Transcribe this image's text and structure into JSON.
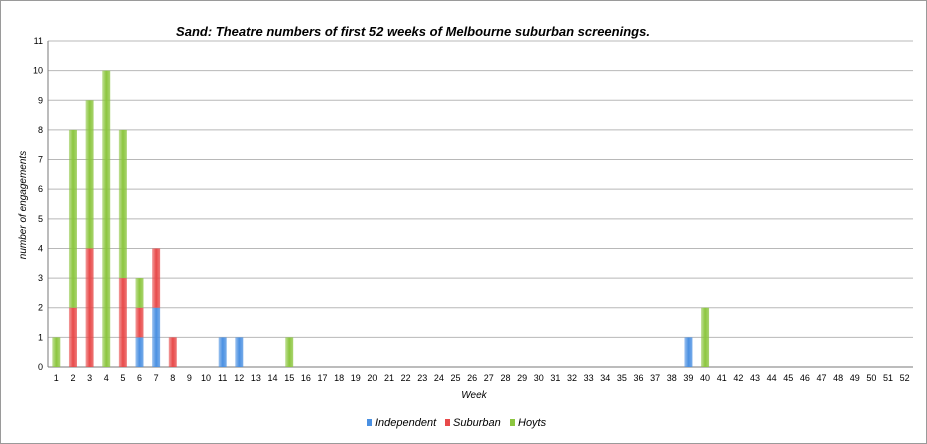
{
  "chart_data": {
    "type": "bar",
    "stacked": true,
    "title": "Sand: Theatre numbers of first 52 weeks of Melbourne suburban screenings.",
    "xlabel": "Week",
    "ylabel": "number of engagements",
    "ylim": [
      0,
      11
    ],
    "yticks": [
      "0",
      "1",
      "2",
      "3",
      "4",
      "5",
      "6",
      "7",
      "8",
      "9",
      "10",
      "11"
    ],
    "grid": true,
    "legend_position": "bottom",
    "categories": [
      "1",
      "2",
      "3",
      "4",
      "5",
      "6",
      "7",
      "8",
      "9",
      "10",
      "11",
      "12",
      "13",
      "14",
      "15",
      "16",
      "17",
      "18",
      "19",
      "20",
      "21",
      "22",
      "23",
      "24",
      "25",
      "26",
      "27",
      "28",
      "29",
      "30",
      "31",
      "32",
      "33",
      "34",
      "35",
      "36",
      "37",
      "38",
      "39",
      "40",
      "41",
      "42",
      "43",
      "44",
      "45",
      "46",
      "47",
      "48",
      "49",
      "50",
      "51",
      "52"
    ],
    "series": [
      {
        "name": "Independent",
        "color": "#4a90e2",
        "values": [
          0,
          0,
          0,
          0,
          0,
          1,
          2,
          0,
          0,
          0,
          1,
          1,
          0,
          0,
          0,
          0,
          0,
          0,
          0,
          0,
          0,
          0,
          0,
          0,
          0,
          0,
          0,
          0,
          0,
          0,
          0,
          0,
          0,
          0,
          0,
          0,
          0,
          0,
          1,
          0,
          0,
          0,
          0,
          0,
          0,
          0,
          0,
          0,
          0,
          0,
          0,
          0
        ]
      },
      {
        "name": "Suburban",
        "color": "#e84a4a",
        "values": [
          0,
          2,
          4,
          0,
          3,
          1,
          2,
          1,
          0,
          0,
          0,
          0,
          0,
          0,
          0,
          0,
          0,
          0,
          0,
          0,
          0,
          0,
          0,
          0,
          0,
          0,
          0,
          0,
          0,
          0,
          0,
          0,
          0,
          0,
          0,
          0,
          0,
          0,
          0,
          0,
          0,
          0,
          0,
          0,
          0,
          0,
          0,
          0,
          0,
          0,
          0,
          0
        ]
      },
      {
        "name": "Hoyts",
        "color": "#8cc63f",
        "values": [
          1,
          6,
          5,
          10,
          5,
          1,
          0,
          0,
          0,
          0,
          0,
          0,
          0,
          0,
          1,
          0,
          0,
          0,
          0,
          0,
          0,
          0,
          0,
          0,
          0,
          0,
          0,
          0,
          0,
          0,
          0,
          0,
          0,
          0,
          0,
          0,
          0,
          0,
          0,
          2,
          0,
          0,
          0,
          0,
          0,
          0,
          0,
          0,
          0,
          0,
          0,
          0
        ]
      }
    ]
  }
}
